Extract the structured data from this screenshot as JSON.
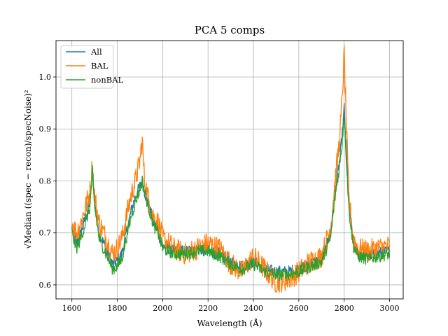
{
  "chart_data": {
    "type": "line",
    "title": "PCA 5 comps",
    "xlabel": "Wavelength (Å)",
    "ylabel": "√Median ((spec − recon)/specNoise)²",
    "xlim": [
      1530,
      3060
    ],
    "ylim": [
      0.573,
      1.07
    ],
    "xticks": [
      1600,
      1800,
      2000,
      2200,
      2400,
      2600,
      2800,
      3000
    ],
    "yticks": [
      0.6,
      0.7,
      0.8,
      0.9,
      1.0
    ],
    "ytick_labels": [
      "0.6",
      "0.7",
      "0.8",
      "0.9",
      "1.0"
    ],
    "grid": true,
    "legend": "top-left",
    "series": [
      {
        "name": "All",
        "color": "#1f77b4",
        "x": [
          1600,
          1620,
          1640,
          1660,
          1680,
          1690,
          1700,
          1720,
          1740,
          1760,
          1780,
          1800,
          1820,
          1840,
          1860,
          1880,
          1900,
          1910,
          1920,
          1940,
          1960,
          1980,
          2000,
          2050,
          2100,
          2150,
          2200,
          2250,
          2300,
          2350,
          2400,
          2450,
          2500,
          2550,
          2600,
          2650,
          2700,
          2740,
          2760,
          2780,
          2790,
          2800,
          2810,
          2820,
          2840,
          2860,
          2900,
          2950,
          3000
        ],
        "y": [
          0.71,
          0.68,
          0.7,
          0.73,
          0.76,
          0.82,
          0.76,
          0.7,
          0.68,
          0.66,
          0.64,
          0.645,
          0.66,
          0.7,
          0.74,
          0.77,
          0.79,
          0.8,
          0.78,
          0.75,
          0.72,
          0.7,
          0.675,
          0.665,
          0.665,
          0.67,
          0.665,
          0.66,
          0.645,
          0.635,
          0.645,
          0.63,
          0.625,
          0.625,
          0.63,
          0.64,
          0.65,
          0.7,
          0.78,
          0.84,
          0.88,
          0.94,
          0.85,
          0.76,
          0.68,
          0.66,
          0.655,
          0.66,
          0.665
        ]
      },
      {
        "name": "BAL",
        "color": "#ff7f0e",
        "x": [
          1600,
          1620,
          1640,
          1660,
          1680,
          1690,
          1700,
          1720,
          1740,
          1760,
          1780,
          1800,
          1820,
          1840,
          1860,
          1880,
          1900,
          1910,
          1920,
          1940,
          1960,
          1980,
          2000,
          2050,
          2100,
          2150,
          2200,
          2250,
          2300,
          2350,
          2400,
          2450,
          2500,
          2550,
          2600,
          2650,
          2700,
          2740,
          2760,
          2780,
          2790,
          2800,
          2810,
          2820,
          2840,
          2860,
          2900,
          2950,
          3000
        ],
        "y": [
          0.72,
          0.7,
          0.72,
          0.75,
          0.78,
          0.83,
          0.77,
          0.72,
          0.7,
          0.68,
          0.66,
          0.67,
          0.69,
          0.73,
          0.77,
          0.8,
          0.84,
          0.88,
          0.8,
          0.76,
          0.73,
          0.72,
          0.69,
          0.67,
          0.66,
          0.67,
          0.68,
          0.67,
          0.64,
          0.625,
          0.655,
          0.63,
          0.605,
          0.61,
          0.625,
          0.645,
          0.655,
          0.71,
          0.8,
          0.88,
          0.95,
          1.045,
          0.9,
          0.77,
          0.69,
          0.67,
          0.665,
          0.67,
          0.675
        ]
      },
      {
        "name": "nonBAL",
        "color": "#2ca02c",
        "x": [
          1600,
          1620,
          1640,
          1660,
          1680,
          1690,
          1700,
          1720,
          1740,
          1760,
          1780,
          1800,
          1820,
          1840,
          1860,
          1880,
          1900,
          1910,
          1920,
          1940,
          1960,
          1980,
          2000,
          2050,
          2100,
          2150,
          2200,
          2250,
          2300,
          2350,
          2400,
          2450,
          2500,
          2550,
          2600,
          2650,
          2700,
          2740,
          2760,
          2780,
          2790,
          2800,
          2810,
          2820,
          2840,
          2860,
          2900,
          2950,
          3000
        ],
        "y": [
          0.7,
          0.67,
          0.69,
          0.72,
          0.75,
          0.82,
          0.75,
          0.69,
          0.67,
          0.65,
          0.63,
          0.635,
          0.65,
          0.69,
          0.73,
          0.76,
          0.785,
          0.8,
          0.78,
          0.745,
          0.715,
          0.7,
          0.67,
          0.66,
          0.66,
          0.665,
          0.665,
          0.655,
          0.64,
          0.63,
          0.64,
          0.625,
          0.62,
          0.62,
          0.625,
          0.635,
          0.645,
          0.69,
          0.77,
          0.83,
          0.87,
          0.93,
          0.84,
          0.75,
          0.675,
          0.655,
          0.65,
          0.655,
          0.66
        ]
      }
    ]
  }
}
